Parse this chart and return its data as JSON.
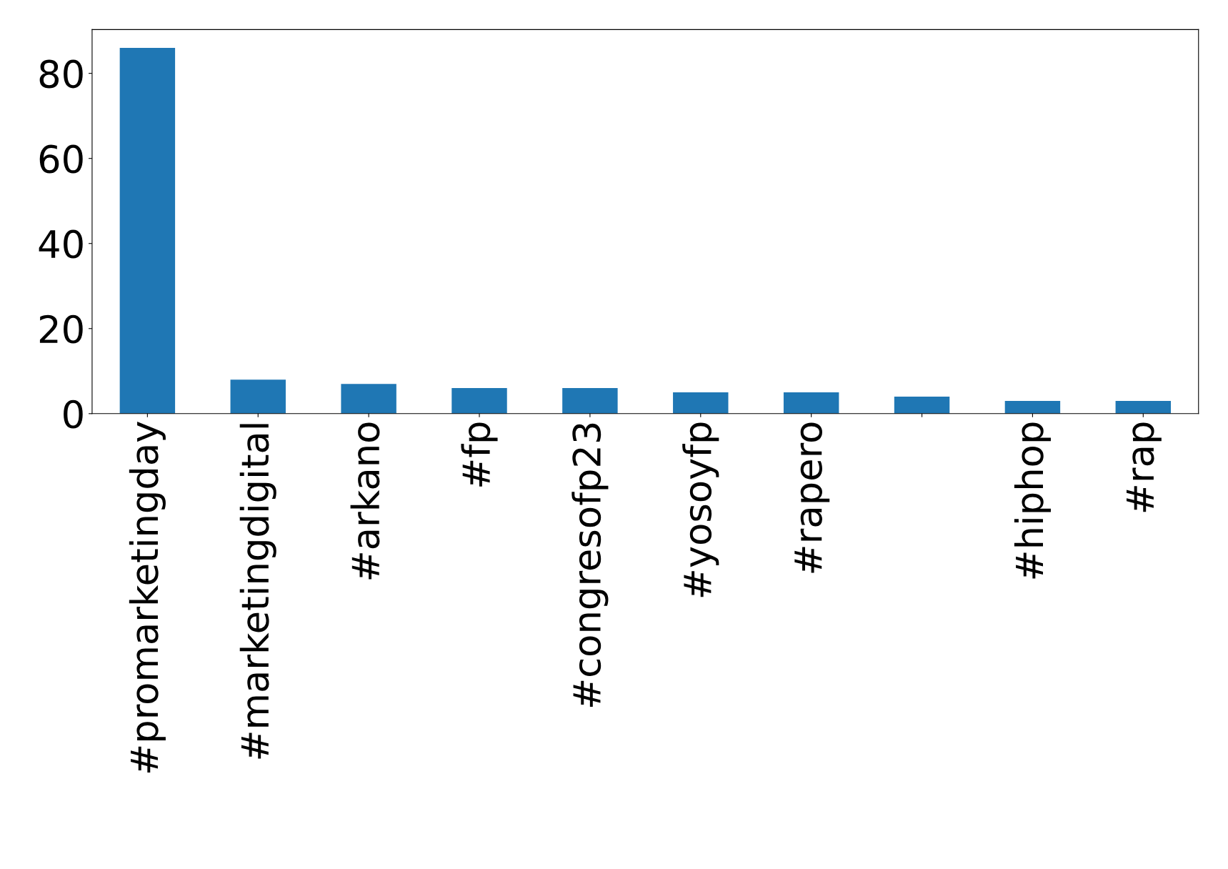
{
  "chart_data": {
    "type": "bar",
    "categories": [
      "#promarketingday",
      "#marketingdigital",
      "#arkano",
      "#fp",
      "#congresofp23",
      "#yosoyfp",
      "#rapero",
      null,
      "#hiphop",
      "#rap"
    ],
    "values": [
      86,
      8,
      7,
      6,
      6,
      5,
      5,
      4,
      3,
      3
    ],
    "color": "#1f77b4",
    "ylim": [
      0,
      90.3
    ],
    "yticks": [
      0,
      20,
      40,
      60,
      80
    ],
    "grid": false,
    "legend": false
  }
}
